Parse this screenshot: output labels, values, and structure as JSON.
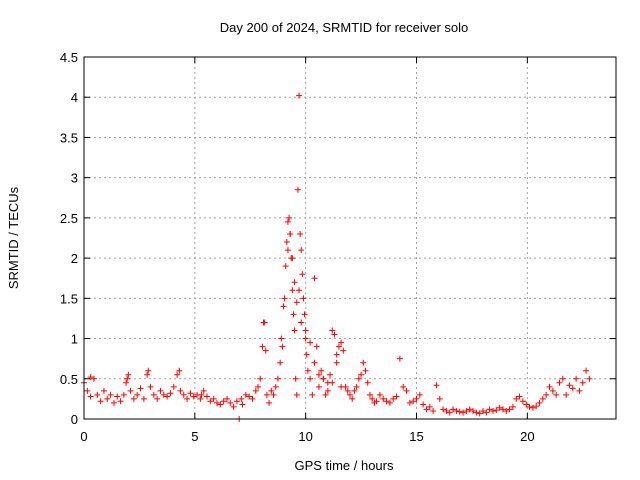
{
  "chart_data": {
    "type": "scatter",
    "title": "Day 200 of 2024, SRMTID for receiver solo",
    "xlabel": "GPS time / hours",
    "ylabel": "SRMTID / TECUs",
    "xlim": [
      0,
      24
    ],
    "ylim": [
      0,
      4.5
    ],
    "x_ticks": [
      0,
      5,
      10,
      15,
      20
    ],
    "x_tick_labels": [
      "0",
      "5",
      "10",
      "15",
      "20"
    ],
    "y_ticks": [
      0,
      0.5,
      1,
      1.5,
      2,
      2.5,
      3,
      3.5,
      4,
      4.5
    ],
    "y_tick_labels": [
      "0",
      "0.5",
      "1",
      "1.5",
      "2",
      "2.5",
      "3",
      "3.5",
      "4",
      "4.5"
    ],
    "grid": true,
    "marker": "+",
    "marker_color": "#ff0000",
    "series": [
      {
        "name": "SRMTID",
        "x": [
          0.0,
          0.15,
          0.3,
          0.45,
          0.6,
          0.75,
          0.9,
          1.05,
          1.2,
          1.35,
          1.5,
          1.65,
          1.8,
          1.95,
          2.1,
          2.25,
          2.4,
          2.55,
          2.7,
          2.85,
          3.0,
          3.15,
          3.3,
          3.45,
          3.6,
          3.75,
          3.9,
          4.05,
          4.2,
          4.35,
          4.5,
          4.65,
          4.8,
          4.95,
          5.1,
          5.25,
          5.4,
          5.55,
          5.7,
          5.85,
          6.0,
          6.15,
          6.3,
          6.45,
          6.6,
          6.75,
          6.9,
          7.0,
          7.15,
          7.3,
          7.45,
          7.6,
          7.75,
          7.85,
          7.95,
          8.05,
          8.15,
          8.25,
          8.35,
          8.45,
          8.55,
          8.65,
          8.75,
          8.85,
          8.95,
          9.05,
          9.1,
          9.15,
          9.2,
          9.25,
          9.3,
          9.35,
          9.4,
          9.45,
          9.5,
          9.55,
          9.6,
          9.65,
          9.7,
          9.75,
          9.8,
          9.85,
          9.9,
          9.95,
          10.0,
          10.05,
          10.1,
          10.2,
          10.3,
          10.4,
          10.5,
          10.6,
          10.7,
          10.8,
          10.9,
          11.0,
          11.1,
          11.2,
          11.3,
          11.4,
          11.5,
          11.6,
          11.7,
          11.8,
          11.9,
          12.0,
          12.1,
          12.2,
          12.3,
          12.4,
          12.5,
          12.6,
          12.7,
          12.8,
          12.9,
          13.0,
          13.1,
          13.2,
          13.35,
          13.5,
          13.65,
          13.8,
          13.95,
          14.1,
          14.25,
          14.4,
          14.55,
          14.7,
          14.85,
          15.0,
          15.15,
          15.3,
          15.45,
          15.6,
          15.75,
          15.9,
          16.05,
          16.2,
          16.35,
          16.5,
          16.65,
          16.8,
          16.95,
          17.1,
          17.25,
          17.4,
          17.55,
          17.7,
          17.85,
          18.0,
          18.15,
          18.3,
          18.45,
          18.6,
          18.75,
          18.9,
          19.05,
          19.2,
          19.35,
          19.5,
          19.65,
          19.8,
          19.95,
          20.1,
          20.25,
          20.4,
          20.55,
          20.7,
          20.85,
          21.0,
          21.15,
          21.3,
          21.45,
          21.6,
          21.75,
          21.9,
          22.05,
          22.2,
          22.35,
          22.5,
          22.65,
          22.8,
          9.2,
          9.3,
          9.4,
          9.5,
          9.6,
          9.7,
          9.8,
          10.0,
          10.2,
          9.0,
          8.9,
          10.4,
          10.6,
          10.8,
          11.0,
          11.2,
          11.4,
          11.6,
          8.1,
          8.2,
          7.1,
          5.3,
          2.0,
          2.9,
          4.3,
          1.9,
          0.3
        ],
        "y": [
          0.45,
          0.35,
          0.28,
          0.5,
          0.3,
          0.22,
          0.35,
          0.25,
          0.3,
          0.2,
          0.28,
          0.22,
          0.3,
          0.5,
          0.35,
          0.25,
          0.3,
          0.38,
          0.25,
          0.55,
          0.4,
          0.3,
          0.25,
          0.35,
          0.3,
          0.28,
          0.32,
          0.4,
          0.55,
          0.35,
          0.3,
          0.25,
          0.32,
          0.28,
          0.3,
          0.25,
          0.35,
          0.28,
          0.22,
          0.25,
          0.2,
          0.18,
          0.22,
          0.25,
          0.2,
          0.15,
          0.22,
          0.0,
          0.18,
          0.3,
          0.28,
          0.25,
          0.35,
          0.4,
          0.5,
          0.9,
          1.2,
          0.3,
          0.2,
          0.35,
          0.3,
          0.4,
          0.5,
          0.7,
          0.9,
          1.5,
          1.9,
          2.2,
          2.45,
          2.5,
          2.3,
          2.0,
          1.6,
          1.3,
          1.1,
          0.5,
          0.3,
          2.85,
          4.02,
          2.3,
          2.1,
          1.8,
          1.5,
          1.3,
          1.0,
          0.8,
          0.6,
          0.5,
          0.3,
          1.75,
          0.9,
          0.4,
          0.6,
          0.5,
          0.3,
          0.35,
          0.55,
          0.45,
          1.05,
          0.8,
          0.9,
          0.95,
          0.85,
          0.4,
          0.35,
          0.3,
          0.25,
          0.35,
          0.4,
          0.5,
          0.55,
          0.7,
          0.6,
          0.45,
          0.3,
          0.25,
          0.2,
          0.22,
          0.3,
          0.25,
          0.22,
          0.2,
          0.25,
          0.28,
          0.75,
          0.4,
          0.35,
          0.2,
          0.22,
          0.25,
          0.3,
          0.18,
          0.12,
          0.15,
          0.1,
          0.42,
          0.25,
          0.12,
          0.1,
          0.08,
          0.12,
          0.1,
          0.09,
          0.08,
          0.1,
          0.12,
          0.1,
          0.08,
          0.07,
          0.1,
          0.08,
          0.12,
          0.1,
          0.11,
          0.14,
          0.12,
          0.1,
          0.12,
          0.15,
          0.25,
          0.28,
          0.22,
          0.18,
          0.15,
          0.14,
          0.16,
          0.2,
          0.25,
          0.3,
          0.4,
          0.35,
          0.3,
          0.45,
          0.5,
          0.3,
          0.42,
          0.38,
          0.5,
          0.35,
          0.45,
          0.6,
          0.5,
          2.1,
          2.3,
          2.0,
          1.7,
          1.45,
          1.6,
          1.2,
          1.1,
          0.95,
          1.4,
          1.0,
          0.7,
          0.55,
          0.5,
          0.45,
          1.1,
          0.7,
          0.4,
          1.2,
          0.85,
          0.25,
          0.3,
          0.55,
          0.6,
          0.6,
          0.45,
          0.52
        ]
      }
    ]
  }
}
